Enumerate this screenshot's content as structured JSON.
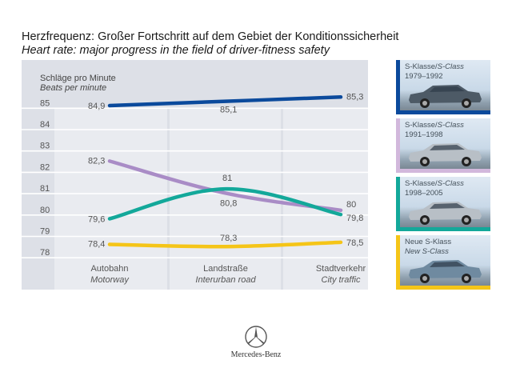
{
  "title": {
    "de": "Herzfrequenz: Großer Fortschritt auf dem Gebiet der Konditionssicherheit",
    "en": "Heart rate: major progress in the field of driver-fitness safety"
  },
  "chart_data": {
    "type": "line",
    "title": "Herzfrequenz: Großer Fortschritt auf dem Gebiet der Konditionssicherheit / Heart rate: major progress in the field of driver-fitness safety",
    "ylabel": {
      "de": "Schläge pro Minute",
      "en": "Beats per minute"
    },
    "xlabel": "",
    "ylim": [
      78,
      85
    ],
    "yticks": [
      "85",
      "84",
      "83",
      "82",
      "81",
      "80",
      "79",
      "78"
    ],
    "ytick_values": [
      85,
      84,
      83,
      82,
      81,
      80,
      79,
      78
    ],
    "grid": true,
    "categories": [
      {
        "de": "Autobahn",
        "en": "Motorway"
      },
      {
        "de": "Landstraße",
        "en": "Interurban road"
      },
      {
        "de": "Stadtverkehr",
        "en": "City traffic"
      }
    ],
    "series": [
      {
        "name": "S-Klasse / S-Class 1979–1992",
        "color": "#0b4a9c",
        "values": [
          84.9,
          85.1,
          85.3
        ],
        "labels": [
          "84,9",
          "85,1",
          "85,3"
        ]
      },
      {
        "name": "S-Klasse / S-Class 1991–1998",
        "color": "#a98cc6",
        "values": [
          82.3,
          80.8,
          80.0
        ],
        "labels": [
          "82,3",
          "80,8",
          "80"
        ]
      },
      {
        "name": "S-Klasse / S-Class 1998–2005",
        "color": "#13a89a",
        "values": [
          79.6,
          81.0,
          79.8
        ],
        "labels": [
          "79,6",
          "81",
          "79,8"
        ]
      },
      {
        "name": "Neue S-Klass / New S-Class",
        "color": "#f5c518",
        "values": [
          78.4,
          78.3,
          78.5
        ],
        "labels": [
          "78,4",
          "78,3",
          "78,5"
        ]
      }
    ],
    "legend_position": "right"
  },
  "legend": [
    {
      "line1_de": "S-Klasse/",
      "line1_en": "S-Class",
      "line2": "1979–1992",
      "line2_italic": false,
      "color": "#0b4a9c",
      "car": "car-sedan-dark-icon"
    },
    {
      "line1_de": "S-Klasse/",
      "line1_en": "S-Class",
      "line2": "1991–1998",
      "line2_italic": false,
      "color": "#d2b8dc",
      "car": "car-sedan-silver-icon"
    },
    {
      "line1_de": "S-Klasse/",
      "line1_en": "S-Class",
      "line2": "1998–2005",
      "line2_italic": false,
      "color": "#13a89a",
      "car": "car-sedan-silver-icon"
    },
    {
      "line1_de": "Neue S-Klass",
      "line1_en": "",
      "line2": "New S-Class",
      "line2_italic": true,
      "color": "#f5c518",
      "car": "car-sedan-blue-icon"
    }
  ],
  "brand": {
    "name": "Mercedes-Benz",
    "icon": "mercedes-star-icon"
  }
}
